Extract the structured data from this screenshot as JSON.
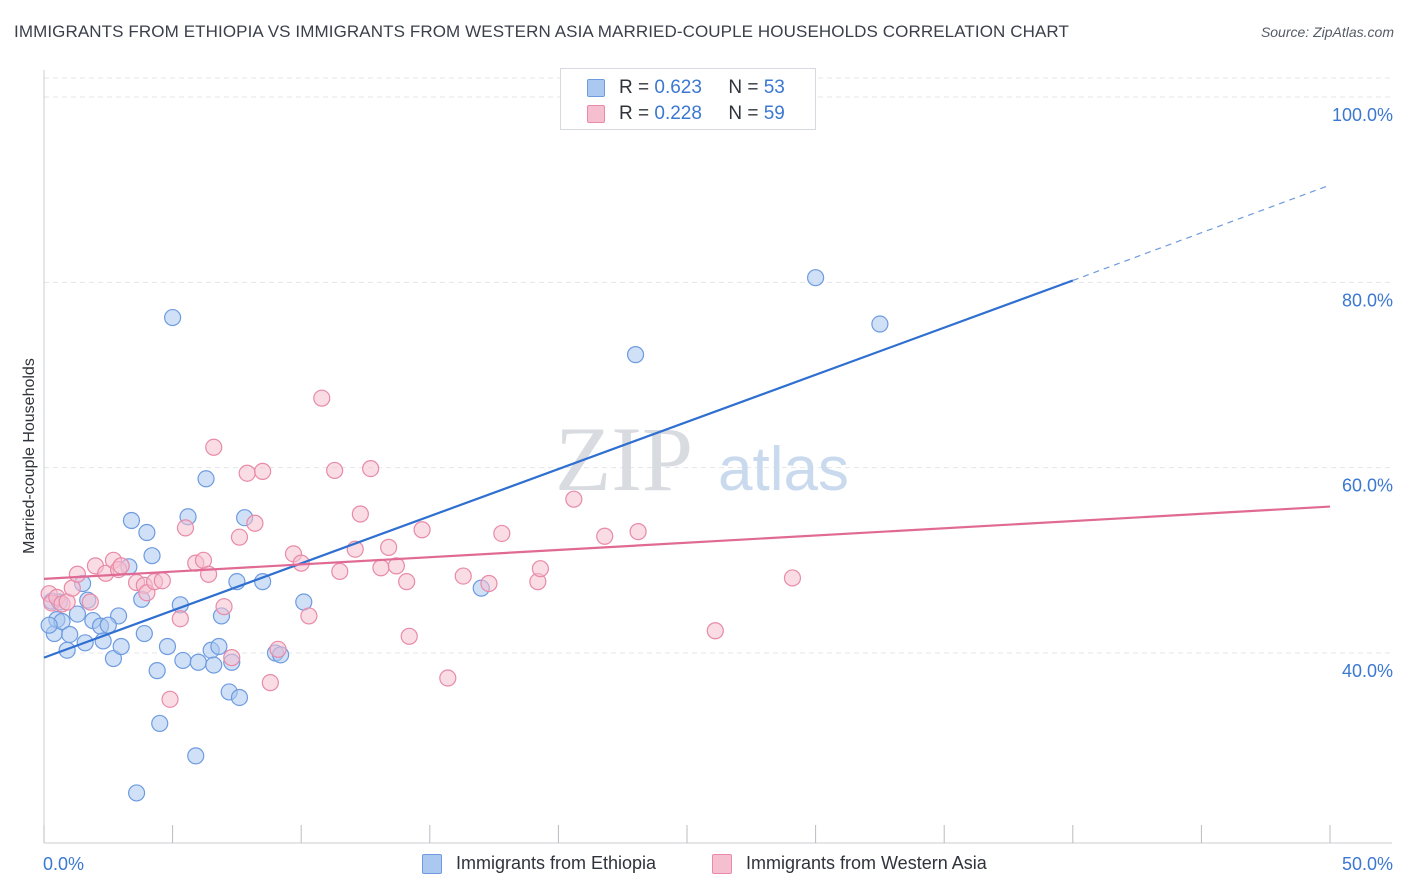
{
  "title": "IMMIGRANTS FROM ETHIOPIA VS IMMIGRANTS FROM WESTERN ASIA MARRIED-COUPLE HOUSEHOLDS CORRELATION CHART",
  "source": "Source: ZipAtlas.com",
  "watermark": {
    "zip": "ZIP",
    "atlas": "atlas"
  },
  "legend": {
    "rows": [
      {
        "r_label": "R =",
        "r_value": "0.623",
        "n_label": "N =",
        "n_value": "53"
      },
      {
        "r_label": "R =",
        "r_value": "0.228",
        "n_label": "N =",
        "n_value": "59"
      }
    ]
  },
  "colors": {
    "blue_fill": "#aac8f0",
    "blue_stroke": "#6e9be0",
    "blue_line": "#2f6fd0",
    "pink_fill": "#f6bfd0",
    "pink_stroke": "#e88aa8",
    "pink_line": "#e06a93",
    "tick_label": "#3b78d1",
    "grid": "#e3e5e9"
  },
  "chart_data": {
    "type": "scatter",
    "title": "IMMIGRANTS FROM ETHIOPIA VS IMMIGRANTS FROM WESTERN ASIA MARRIED-COUPLE HOUSEHOLDS CORRELATION CHART",
    "xlabel": "",
    "ylabel": "Married-couple Households",
    "xlim": [
      0,
      50
    ],
    "ylim": [
      22,
      104
    ],
    "x_tick_labels": [
      {
        "value": 0,
        "label": "0.0%"
      },
      {
        "value": 50,
        "label": "50.0%"
      }
    ],
    "y_tick_labels": [
      {
        "value": 40,
        "label": "40.0%"
      },
      {
        "value": 60,
        "label": "60.0%"
      },
      {
        "value": 80,
        "label": "80.0%"
      },
      {
        "value": 100,
        "label": "100.0%"
      }
    ],
    "grid": true,
    "legend_position": "top-center",
    "series": [
      {
        "name": "Immigrants from Ethiopia",
        "color": "#aac8f0",
        "points": [
          [
            0.3,
            45.6
          ],
          [
            0.4,
            42.1
          ],
          [
            0.5,
            43.6
          ],
          [
            0.6,
            45.5
          ],
          [
            0.7,
            43.4
          ],
          [
            0.9,
            40.3
          ],
          [
            1.0,
            42.0
          ],
          [
            1.3,
            44.2
          ],
          [
            1.6,
            41.1
          ],
          [
            1.7,
            45.7
          ],
          [
            1.9,
            43.5
          ],
          [
            2.2,
            42.9
          ],
          [
            2.3,
            41.3
          ],
          [
            2.7,
            39.4
          ],
          [
            2.9,
            44.0
          ],
          [
            3.0,
            40.7
          ],
          [
            3.3,
            49.3
          ],
          [
            3.4,
            54.3
          ],
          [
            3.6,
            24.9
          ],
          [
            3.8,
            45.8
          ],
          [
            3.9,
            42.1
          ],
          [
            4.0,
            53.0
          ],
          [
            4.2,
            50.5
          ],
          [
            4.4,
            38.1
          ],
          [
            4.5,
            32.4
          ],
          [
            4.8,
            40.7
          ],
          [
            5.0,
            76.2
          ],
          [
            5.3,
            45.2
          ],
          [
            5.4,
            39.2
          ],
          [
            5.6,
            54.7
          ],
          [
            5.9,
            28.9
          ],
          [
            6.0,
            39.0
          ],
          [
            6.3,
            58.8
          ],
          [
            6.5,
            40.3
          ],
          [
            6.6,
            38.7
          ],
          [
            6.8,
            40.7
          ],
          [
            6.9,
            44.0
          ],
          [
            7.2,
            35.8
          ],
          [
            7.3,
            39.0
          ],
          [
            7.5,
            47.7
          ],
          [
            7.6,
            35.2
          ],
          [
            7.8,
            54.6
          ],
          [
            8.5,
            47.7
          ],
          [
            9.0,
            40.0
          ],
          [
            9.2,
            39.8
          ],
          [
            10.1,
            45.5
          ],
          [
            17.0,
            47.0
          ],
          [
            23.0,
            72.2
          ],
          [
            30.0,
            80.5
          ],
          [
            32.5,
            75.5
          ],
          [
            0.2,
            43.0
          ],
          [
            1.5,
            47.5
          ],
          [
            2.5,
            43.0
          ]
        ]
      },
      {
        "name": "Immigrants from Western Asia",
        "color": "#f6bfd0",
        "points": [
          [
            0.2,
            46.4
          ],
          [
            0.3,
            45.4
          ],
          [
            0.5,
            46.0
          ],
          [
            0.7,
            45.3
          ],
          [
            0.9,
            45.5
          ],
          [
            1.1,
            47.0
          ],
          [
            1.3,
            48.5
          ],
          [
            1.8,
            45.5
          ],
          [
            2.0,
            49.4
          ],
          [
            2.4,
            48.6
          ],
          [
            2.7,
            50.0
          ],
          [
            2.9,
            49.0
          ],
          [
            3.0,
            49.4
          ],
          [
            3.6,
            47.6
          ],
          [
            3.9,
            47.3
          ],
          [
            4.0,
            46.5
          ],
          [
            4.3,
            47.7
          ],
          [
            4.6,
            47.8
          ],
          [
            4.9,
            35.0
          ],
          [
            5.3,
            43.7
          ],
          [
            5.5,
            53.5
          ],
          [
            5.9,
            49.7
          ],
          [
            6.2,
            50.0
          ],
          [
            6.4,
            48.5
          ],
          [
            6.6,
            62.2
          ],
          [
            7.0,
            45.0
          ],
          [
            7.3,
            39.5
          ],
          [
            7.6,
            52.5
          ],
          [
            7.9,
            59.4
          ],
          [
            8.2,
            54.0
          ],
          [
            8.5,
            59.6
          ],
          [
            8.8,
            36.8
          ],
          [
            9.1,
            40.4
          ],
          [
            9.7,
            50.7
          ],
          [
            10.0,
            49.7
          ],
          [
            10.3,
            44.0
          ],
          [
            10.8,
            67.5
          ],
          [
            11.3,
            59.7
          ],
          [
            11.5,
            48.8
          ],
          [
            12.1,
            51.2
          ],
          [
            12.3,
            55.0
          ],
          [
            12.7,
            59.9
          ],
          [
            13.1,
            49.2
          ],
          [
            13.4,
            51.4
          ],
          [
            13.7,
            49.4
          ],
          [
            14.1,
            47.7
          ],
          [
            14.2,
            41.8
          ],
          [
            14.7,
            53.3
          ],
          [
            15.7,
            37.3
          ],
          [
            16.3,
            48.3
          ],
          [
            17.3,
            47.5
          ],
          [
            17.8,
            52.9
          ],
          [
            19.2,
            47.7
          ],
          [
            19.3,
            49.1
          ],
          [
            20.6,
            56.6
          ],
          [
            21.8,
            52.6
          ],
          [
            23.1,
            53.1
          ],
          [
            26.1,
            42.4
          ],
          [
            29.1,
            48.1
          ]
        ]
      }
    ],
    "extra_series_points_note_free": [],
    "trend_lines": [
      {
        "name": "Immigrants from Ethiopia",
        "x": [
          0,
          40
        ],
        "y": [
          39.5,
          80.2
        ],
        "extend_dashed_to": [
          50,
          90.5
        ]
      },
      {
        "name": "Immigrants from Western Asia",
        "x": [
          0,
          50
        ],
        "y": [
          48.0,
          55.8
        ]
      }
    ]
  },
  "bottom_legend": {
    "items": [
      {
        "label": "Immigrants from Ethiopia"
      },
      {
        "label": "Immigrants from Western Asia"
      }
    ]
  },
  "y_axis_label": "Married-couple Households"
}
